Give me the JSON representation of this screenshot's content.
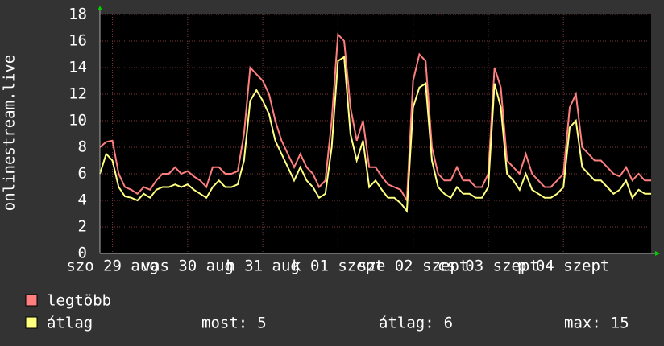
{
  "y_label": "onlinestream.live",
  "chart_data": {
    "type": "line",
    "ylim": [
      0,
      18
    ],
    "yticks": [
      0,
      2,
      4,
      6,
      8,
      10,
      12,
      14,
      16,
      18
    ],
    "grid": true,
    "xticks": [
      {
        "value": 2,
        "label": "szo 29 aug"
      },
      {
        "value": 14,
        "label": "vas 30 aug"
      },
      {
        "value": 26,
        "label": "h 31 aug"
      },
      {
        "value": 38,
        "label": "k 01 szept"
      },
      {
        "value": 50,
        "label": "sze 02 szept"
      },
      {
        "value": 62,
        "label": "cs 03 szept"
      },
      {
        "value": 74,
        "label": "p 04 szept"
      }
    ],
    "series": [
      {
        "name": "legtöbb",
        "color": "#ff7f7f",
        "values": [
          8,
          8.4,
          8.5,
          6,
          5,
          4.8,
          4.5,
          5,
          4.8,
          5.5,
          6,
          6,
          6.5,
          6,
          6.2,
          5.8,
          5.5,
          5,
          6.5,
          6.5,
          6,
          6,
          6.2,
          9,
          14,
          13.5,
          13,
          12,
          10,
          8.5,
          7.5,
          6.5,
          7.5,
          6.5,
          6,
          5,
          5.5,
          10,
          16.5,
          16,
          11,
          8.5,
          10,
          6.5,
          6.5,
          5.8,
          5.2,
          5,
          4.8,
          4,
          13,
          15,
          14.5,
          8,
          6,
          5.5,
          5.5,
          6.5,
          5.5,
          5.5,
          5,
          5,
          6,
          14,
          12.5,
          7,
          6.5,
          6,
          7.5,
          6,
          5.5,
          5,
          5,
          5.5,
          6,
          11,
          12,
          8,
          7.5,
          7,
          7,
          6.5,
          6,
          5.8,
          6.5,
          5.5,
          6,
          5.5,
          5.5
        ]
      },
      {
        "name": "átlag",
        "color": "#ffff80",
        "values": [
          6,
          7.5,
          7,
          5,
          4.3,
          4.2,
          4,
          4.5,
          4.2,
          4.8,
          5,
          5,
          5.2,
          5,
          5.2,
          4.8,
          4.5,
          4.2,
          5,
          5.5,
          5,
          5,
          5.2,
          7,
          11.5,
          12.3,
          11.5,
          10.5,
          8.5,
          7.5,
          6.5,
          5.5,
          6.5,
          5.5,
          5,
          4.2,
          4.5,
          8,
          14.5,
          14.8,
          9,
          7,
          8.5,
          5,
          5.5,
          4.8,
          4.2,
          4.2,
          3.8,
          3.2,
          11,
          12.5,
          12.8,
          7,
          5,
          4.5,
          4.2,
          5,
          4.5,
          4.5,
          4.2,
          4.2,
          5,
          12.8,
          11,
          6,
          5.5,
          4.8,
          6,
          4.8,
          4.5,
          4.2,
          4.2,
          4.5,
          5,
          9.5,
          10,
          6.5,
          6,
          5.5,
          5.5,
          5,
          4.5,
          4.8,
          5.5,
          4.2,
          4.8,
          4.5,
          4.5
        ]
      }
    ],
    "stats": [
      {
        "label": "most:",
        "value": 5
      },
      {
        "label": "átlag:",
        "value": 6
      },
      {
        "label": "max:",
        "value": 15
      }
    ]
  }
}
